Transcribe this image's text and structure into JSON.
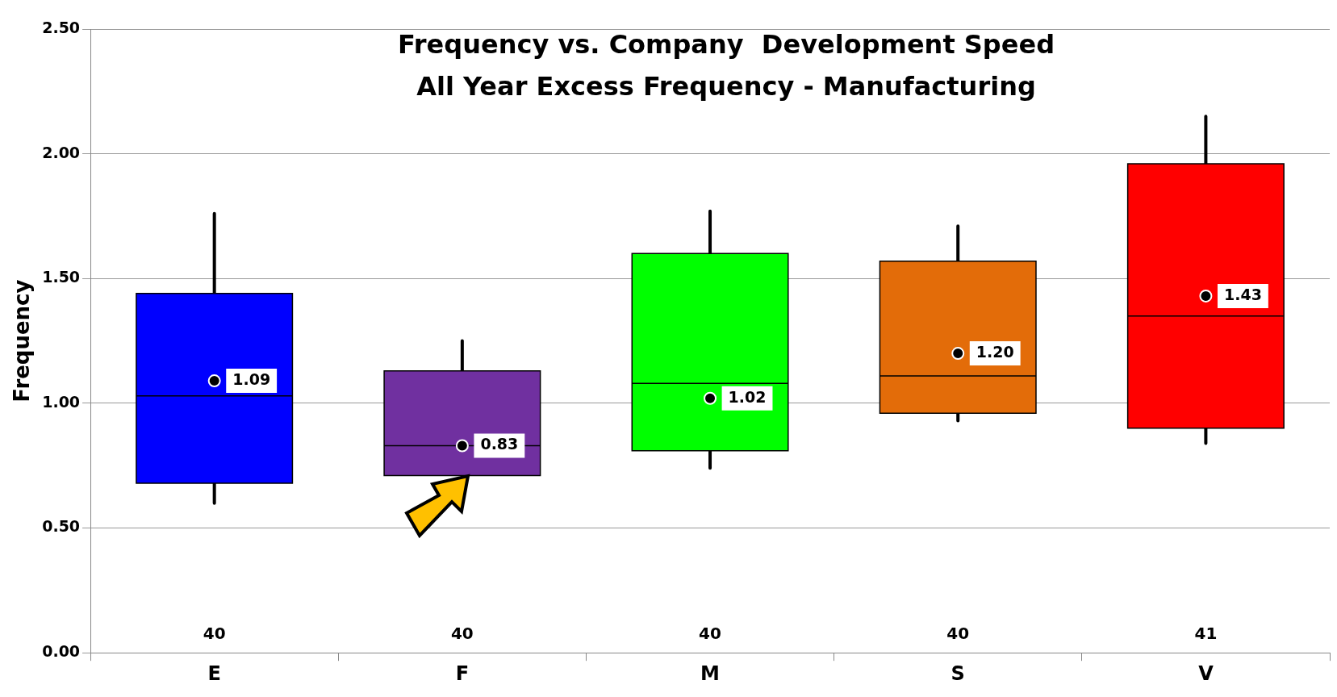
{
  "chart_data": {
    "type": "box",
    "title": "Frequency vs. Company  Development Speed",
    "subtitle": "All Year Excess Frequency - Manufacturing",
    "ylabel": "Frequency",
    "categories": [
      "E",
      "F",
      "M",
      "S",
      "V"
    ],
    "colors": [
      "#0000ff",
      "#7030a0",
      "#00ff00",
      "#e36c09",
      "#ff0000"
    ],
    "boxes": [
      {
        "low": 0.6,
        "q1": 0.68,
        "median": 1.03,
        "q3": 1.44,
        "high": 1.76,
        "mean": 1.09
      },
      {
        "low": 0.65,
        "q1": 0.71,
        "median": 0.83,
        "q3": 1.13,
        "high": 1.25,
        "mean": 0.83
      },
      {
        "low": 0.74,
        "q1": 0.81,
        "median": 1.08,
        "q3": 1.6,
        "high": 1.77,
        "mean": 1.02
      },
      {
        "low": 0.93,
        "q1": 0.96,
        "median": 1.11,
        "q3": 1.57,
        "high": 1.71,
        "mean": 1.2
      },
      {
        "low": 0.84,
        "q1": 0.9,
        "median": 1.35,
        "q3": 1.96,
        "high": 2.15,
        "mean": 1.43
      }
    ],
    "ylim": [
      0,
      2.5
    ],
    "yticks": [
      {
        "value": 0,
        "label": "0.00"
      },
      {
        "value": 0.5,
        "label": "0.50"
      },
      {
        "value": 1,
        "label": "1.00"
      },
      {
        "value": 1.5,
        "label": "1.50"
      },
      {
        "value": 2,
        "label": "2.00"
      },
      {
        "value": 2.5,
        "label": "2.50"
      }
    ],
    "grid": "y",
    "legend": false,
    "value_labels": [
      "1.09",
      "0.83",
      "1.02",
      "1.20",
      "1.43"
    ],
    "annotations": [
      "40",
      "40",
      "40",
      "40",
      "41"
    ]
  }
}
